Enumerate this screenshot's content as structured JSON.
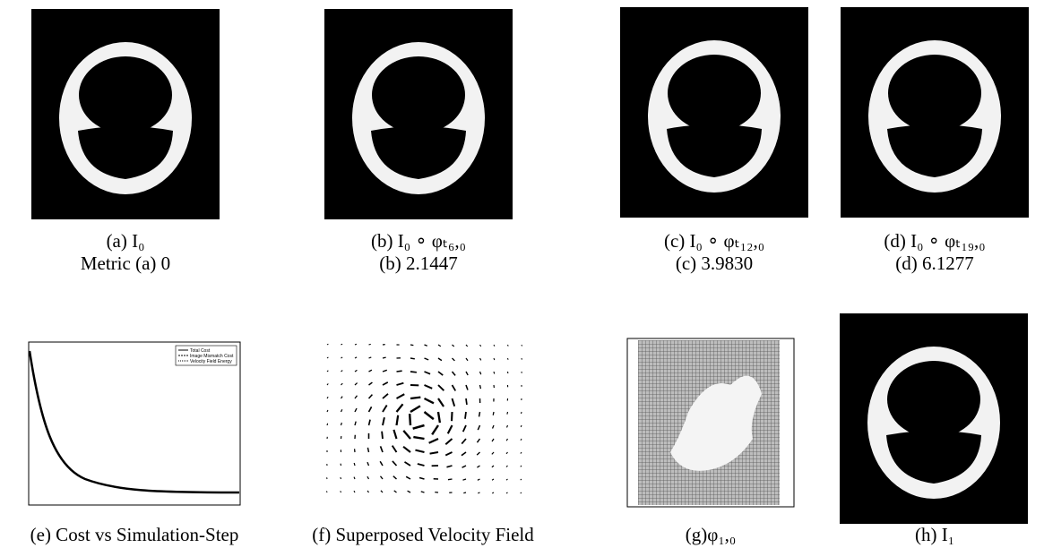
{
  "top_row": [
    {
      "caption": "(a) I₀",
      "metric": "Metric (a) 0"
    },
    {
      "caption": "(b) I₀ ∘ φₜ₆,₀",
      "metric": "(b) 2.1447"
    },
    {
      "caption": "(c) I₀ ∘ φₜ₁₂,₀",
      "metric": "(c) 3.9830"
    },
    {
      "caption": "(d) I₀ ∘ φₜ₁₉,₀",
      "metric": "(d) 6.1277"
    }
  ],
  "bottom_row": [
    {
      "caption": "(e) Cost vs Simulation-Step"
    },
    {
      "caption": "(f) Superposed Velocity Field"
    },
    {
      "caption": "(g)φ₁,₀"
    },
    {
      "caption": "(h) I₁"
    }
  ],
  "cost_legend": [
    "Total Cost",
    "Image Mismatch Cost",
    "Velocity Field Energy"
  ]
}
